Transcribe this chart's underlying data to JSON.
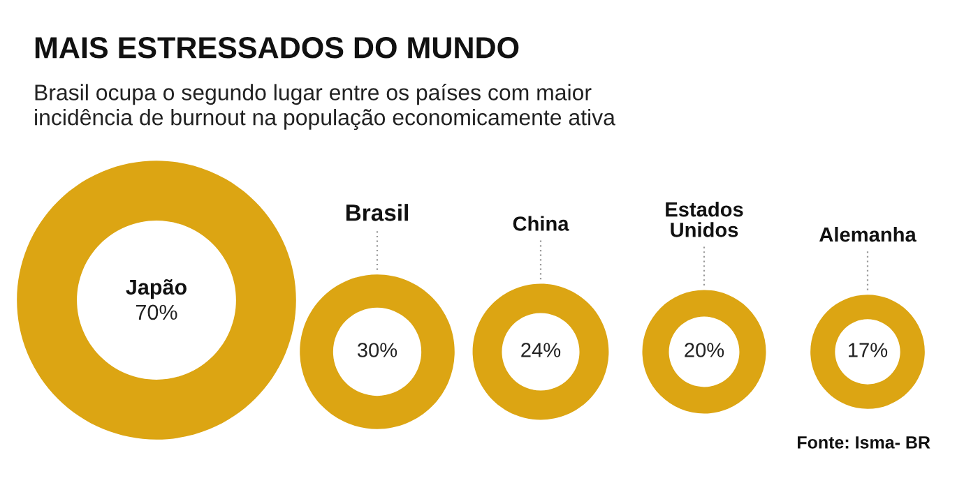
{
  "chart_data": {
    "type": "other",
    "title": "MAIS ESTRESSADOS DO MUNDO",
    "subtitle": "Brasil ocupa o segundo lugar entre os países com maior\nincidência de burnout na população economicamente ativa",
    "categories": [
      "Japão",
      "Brasil",
      "China",
      "Estados\nUnidos",
      "Alemanha"
    ],
    "values": [
      70,
      30,
      24,
      20,
      17
    ],
    "value_labels": [
      "70%",
      "30%",
      "24%",
      "20%",
      "17%"
    ],
    "color": "#dca513",
    "annotations": [
      "Fonte: Isma- BR"
    ]
  }
}
